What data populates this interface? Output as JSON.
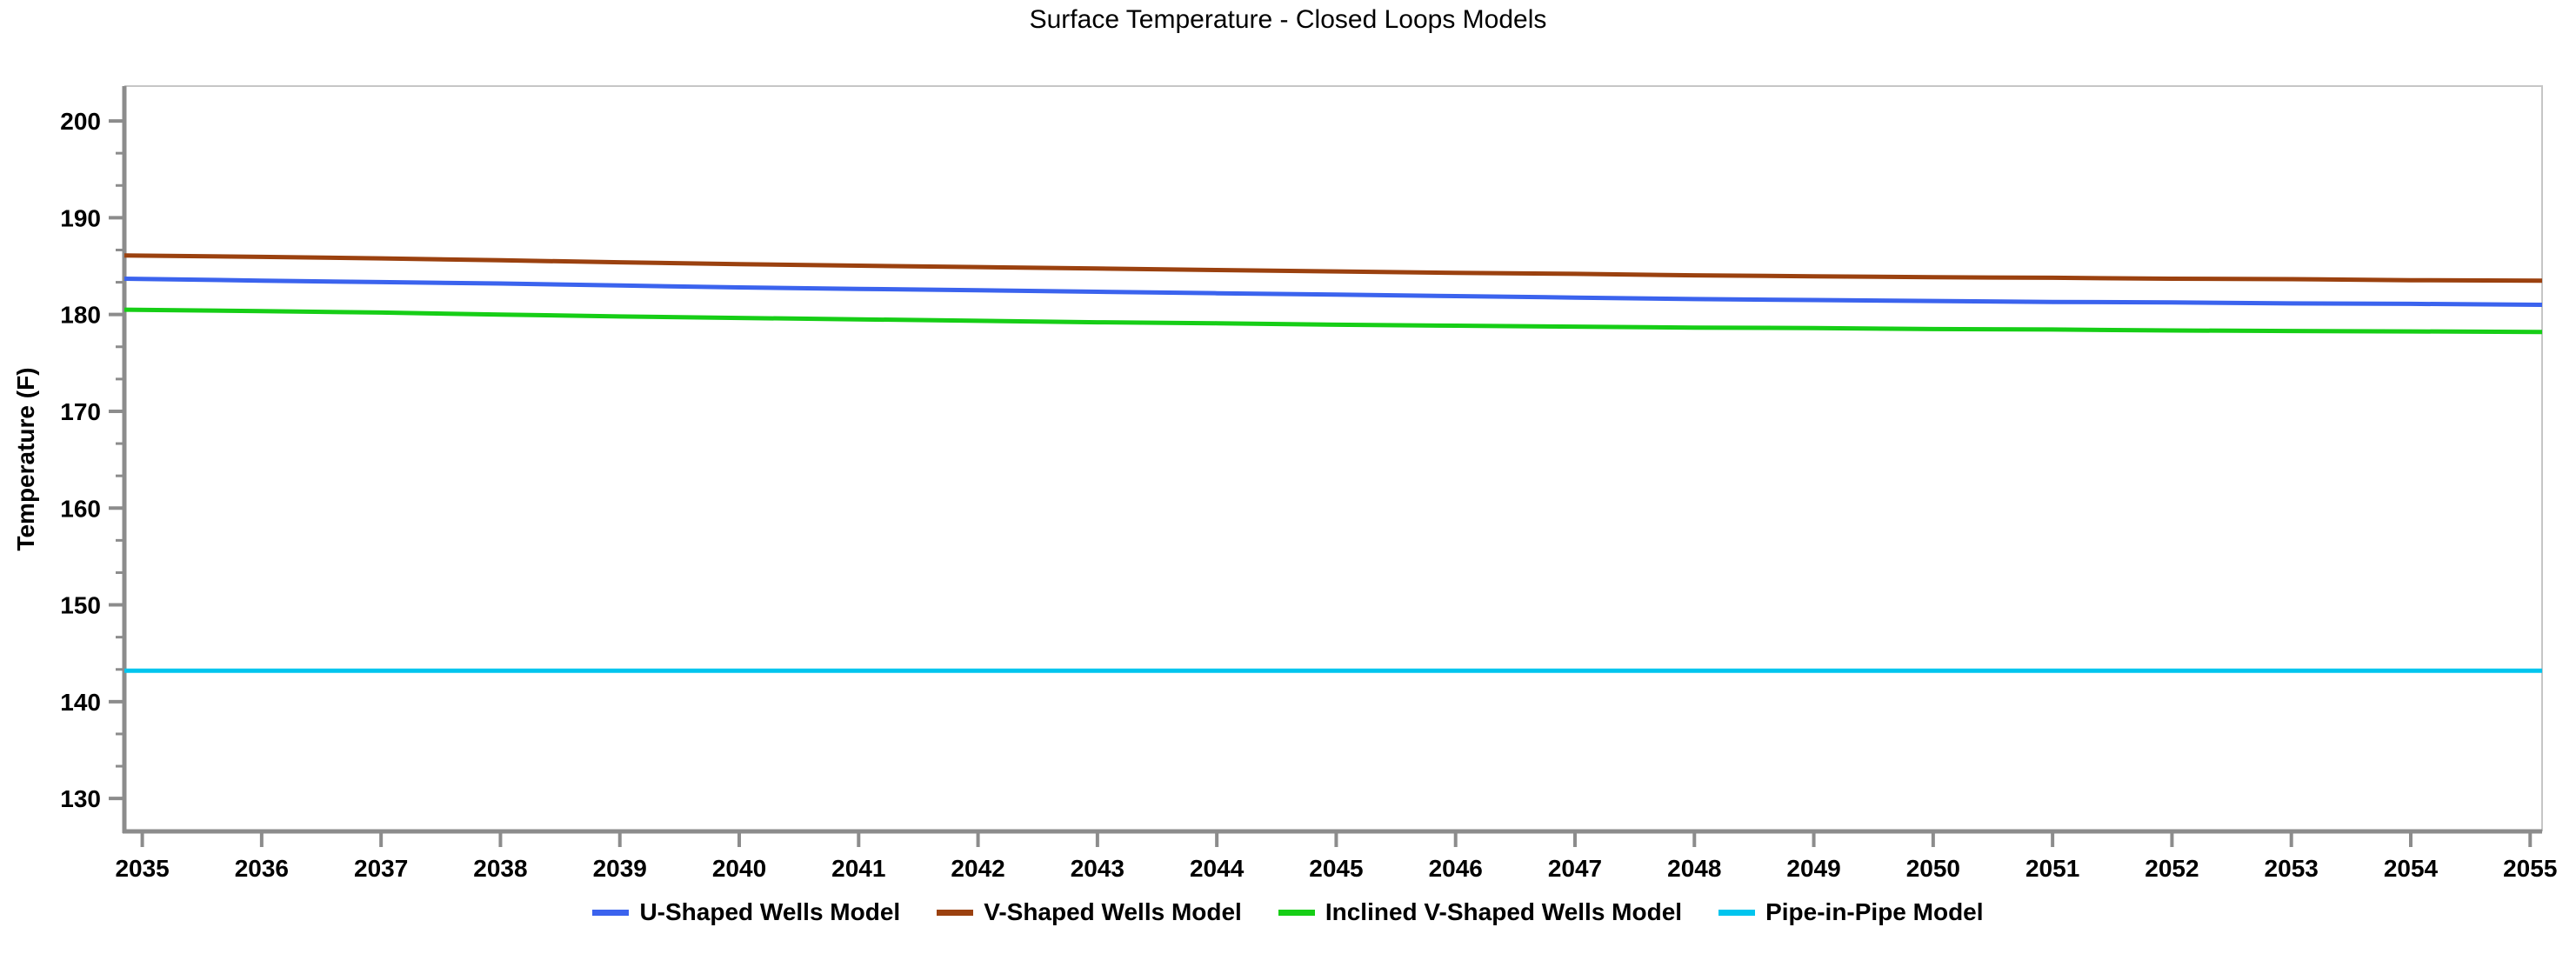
{
  "page": {
    "background": "#FFFFFF"
  },
  "chart_data": {
    "type": "line",
    "title": "Surface Temperature - Closed Loops Models",
    "xlabel": "",
    "ylabel": "Temperature (F)",
    "x": [
      2035,
      2036,
      2037,
      2038,
      2039,
      2040,
      2041,
      2042,
      2043,
      2044,
      2045,
      2046,
      2047,
      2048,
      2049,
      2050,
      2051,
      2052,
      2053,
      2054,
      2055
    ],
    "x_ticks": [
      2035,
      2036,
      2037,
      2038,
      2039,
      2040,
      2041,
      2042,
      2043,
      2044,
      2045,
      2046,
      2047,
      2048,
      2049,
      2050,
      2051,
      2052,
      2053,
      2054,
      2055
    ],
    "y_ticks": [
      130,
      140,
      150,
      160,
      170,
      180,
      190,
      200
    ],
    "xlim": [
      2034.85,
      2055.1
    ],
    "ylim": [
      126.6,
      203.6
    ],
    "grid": false,
    "legend_position": "bottom-center",
    "axis_color": "#8C8C8C",
    "border_color": "#C6C6C6",
    "series": [
      {
        "name": "U-Shaped Wells Model",
        "color": "#3B63EE",
        "values": [
          183.7,
          183.5,
          183.35,
          183.2,
          183.0,
          182.8,
          182.65,
          182.5,
          182.35,
          182.2,
          182.05,
          181.9,
          181.75,
          181.6,
          181.5,
          181.4,
          181.3,
          181.25,
          181.15,
          181.1,
          181.0
        ]
      },
      {
        "name": "V-Shaped Wells Model",
        "color": "#9B410F",
        "values": [
          186.1,
          185.95,
          185.8,
          185.6,
          185.4,
          185.2,
          185.05,
          184.9,
          184.75,
          184.6,
          184.45,
          184.3,
          184.2,
          184.05,
          183.95,
          183.85,
          183.8,
          183.7,
          183.65,
          183.55,
          183.5
        ]
      },
      {
        "name": "Inclined V-Shaped Wells Model",
        "color": "#16CE16",
        "values": [
          180.5,
          180.35,
          180.2,
          180.0,
          179.8,
          179.65,
          179.5,
          179.35,
          179.2,
          179.1,
          178.95,
          178.85,
          178.75,
          178.65,
          178.6,
          178.5,
          178.45,
          178.35,
          178.3,
          178.25,
          178.2
        ]
      },
      {
        "name": "Pipe-in-Pipe Model",
        "color": "#00C5EE",
        "values": [
          143.2,
          143.2,
          143.2,
          143.2,
          143.2,
          143.2,
          143.2,
          143.2,
          143.2,
          143.2,
          143.2,
          143.2,
          143.2,
          143.2,
          143.2,
          143.2,
          143.2,
          143.2,
          143.2,
          143.2,
          143.2
        ]
      }
    ]
  }
}
